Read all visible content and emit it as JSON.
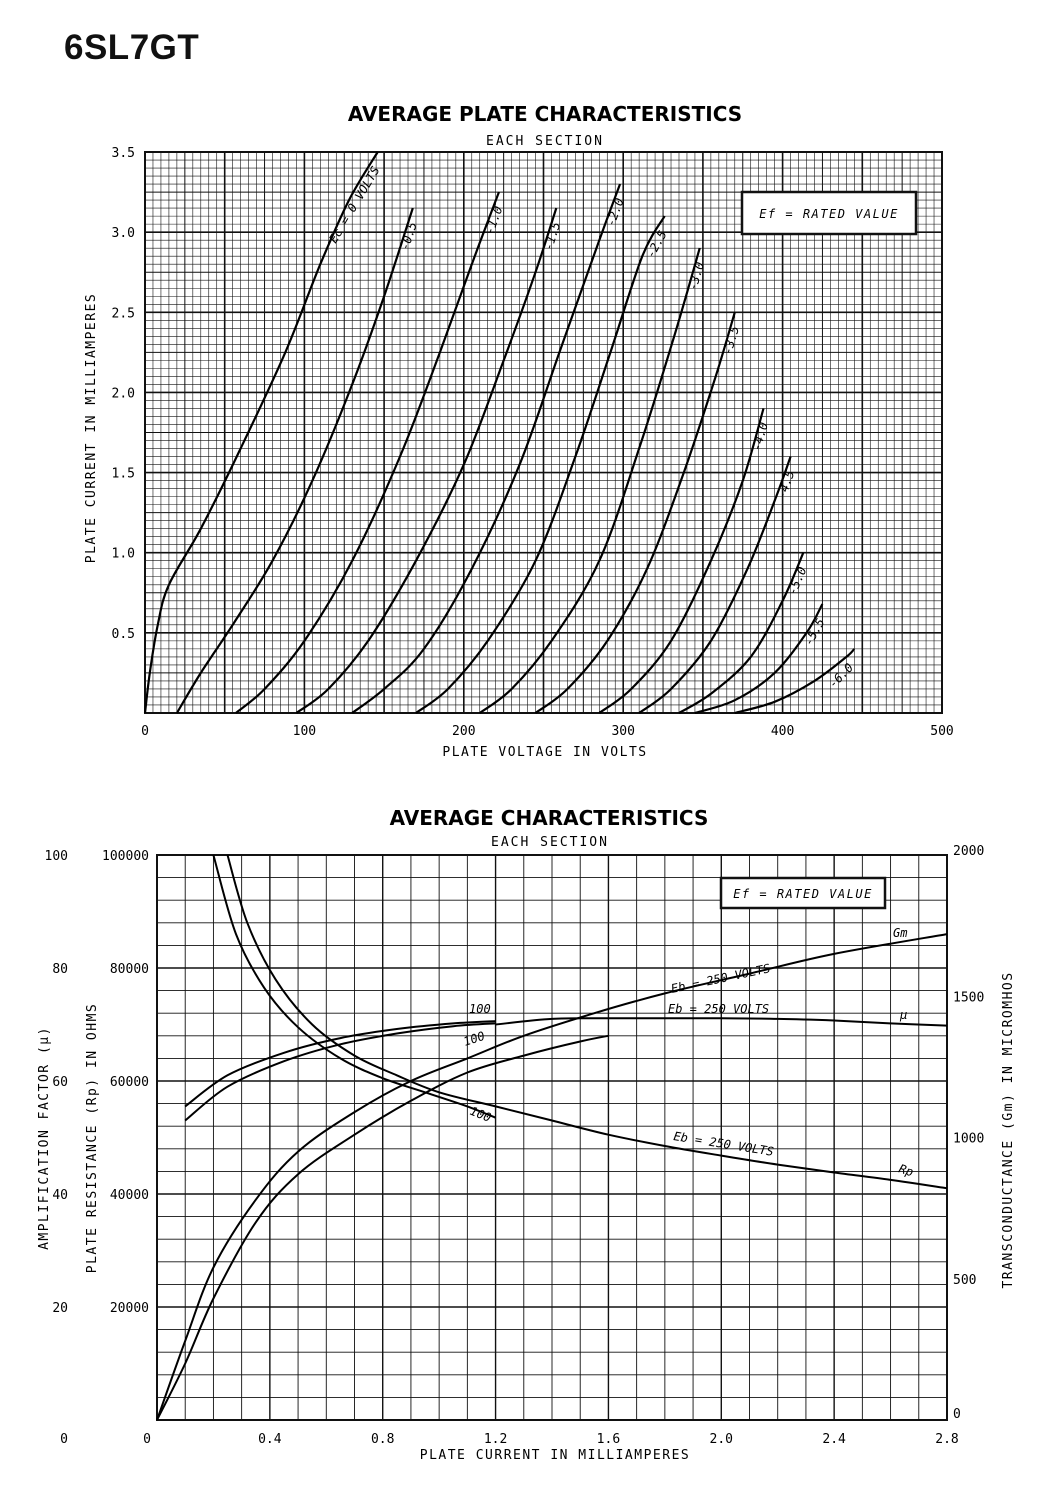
{
  "page": {
    "title": "6SL7GT"
  },
  "chart_data": [
    {
      "type": "line",
      "title": "AVERAGE PLATE CHARACTERISTICS",
      "subtitle": "EACH SECTION",
      "xlabel": "PLATE VOLTAGE IN VOLTS",
      "ylabel": "PLATE CURRENT IN MILLIAMPERES",
      "xlim": [
        0,
        500
      ],
      "ylim": [
        0,
        3.5
      ],
      "xticks": [
        "0",
        "100",
        "200",
        "300",
        "400",
        "500"
      ],
      "yticks": [
        "0.5",
        "1.0",
        "1.5",
        "2.0",
        "2.5",
        "3.0",
        "3.5"
      ],
      "grid": true,
      "note": "Ef = RATED VALUE",
      "series": [
        {
          "name": "Ec = 0 VOLTS",
          "points": [
            [
              0,
              0
            ],
            [
              3,
              0.25
            ],
            [
              8,
              0.55
            ],
            [
              15,
              0.8
            ],
            [
              35,
              1.15
            ],
            [
              60,
              1.65
            ],
            [
              88,
              2.25
            ],
            [
              110,
              2.8
            ],
            [
              128,
              3.2
            ],
            [
              146,
              3.5
            ]
          ]
        },
        {
          "name": "-0.5",
          "points": [
            [
              20,
              0
            ],
            [
              35,
              0.25
            ],
            [
              55,
              0.55
            ],
            [
              80,
              0.95
            ],
            [
              105,
              1.45
            ],
            [
              130,
              2.05
            ],
            [
              150,
              2.6
            ],
            [
              168,
              3.15
            ]
          ]
        },
        {
          "name": "-1.0",
          "points": [
            [
              57,
              0
            ],
            [
              75,
              0.15
            ],
            [
              100,
              0.45
            ],
            [
              130,
              0.95
            ],
            [
              160,
              1.6
            ],
            [
              185,
              2.25
            ],
            [
              205,
              2.8
            ],
            [
              222,
              3.25
            ]
          ]
        },
        {
          "name": "-1.5",
          "points": [
            [
              95,
              0
            ],
            [
              115,
              0.15
            ],
            [
              140,
              0.45
            ],
            [
              170,
              0.95
            ],
            [
              200,
              1.55
            ],
            [
              225,
              2.2
            ],
            [
              245,
              2.75
            ],
            [
              258,
              3.15
            ]
          ]
        },
        {
          "name": "-2.0",
          "points": [
            [
              130,
              0
            ],
            [
              150,
              0.15
            ],
            [
              175,
              0.4
            ],
            [
              205,
              0.9
            ],
            [
              235,
              1.55
            ],
            [
              260,
              2.25
            ],
            [
              285,
              2.95
            ],
            [
              298,
              3.3
            ]
          ]
        },
        {
          "name": "-2.5",
          "points": [
            [
              170,
              0
            ],
            [
              190,
              0.15
            ],
            [
              215,
              0.45
            ],
            [
              245,
              0.95
            ],
            [
              270,
              1.6
            ],
            [
              292,
              2.25
            ],
            [
              312,
              2.85
            ],
            [
              326,
              3.1
            ]
          ]
        },
        {
          "name": "-3.0",
          "points": [
            [
              210,
              0
            ],
            [
              230,
              0.15
            ],
            [
              255,
              0.45
            ],
            [
              285,
              0.95
            ],
            [
              310,
              1.65
            ],
            [
              332,
              2.35
            ],
            [
              348,
              2.9
            ]
          ]
        },
        {
          "name": "-3.5",
          "points": [
            [
              245,
              0
            ],
            [
              265,
              0.15
            ],
            [
              290,
              0.45
            ],
            [
              315,
              0.9
            ],
            [
              338,
              1.5
            ],
            [
              358,
              2.1
            ],
            [
              370,
              2.5
            ]
          ]
        },
        {
          "name": "-4.0",
          "points": [
            [
              285,
              0
            ],
            [
              305,
              0.15
            ],
            [
              330,
              0.45
            ],
            [
              355,
              0.95
            ],
            [
              375,
              1.45
            ],
            [
              388,
              1.9
            ]
          ]
        },
        {
          "name": "-4.5",
          "points": [
            [
              310,
              0
            ],
            [
              330,
              0.15
            ],
            [
              355,
              0.45
            ],
            [
              378,
              0.9
            ],
            [
              396,
              1.35
            ],
            [
              405,
              1.6
            ]
          ]
        },
        {
          "name": "-5.0",
          "points": [
            [
              335,
              0
            ],
            [
              355,
              0.12
            ],
            [
              380,
              0.35
            ],
            [
              400,
              0.7
            ],
            [
              413,
              1.0
            ]
          ]
        },
        {
          "name": "-5.5",
          "points": [
            [
              345,
              0
            ],
            [
              370,
              0.08
            ],
            [
              395,
              0.25
            ],
            [
              415,
              0.5
            ],
            [
              425,
              0.68
            ]
          ]
        },
        {
          "name": "-6.0",
          "points": [
            [
              370,
              0
            ],
            [
              395,
              0.07
            ],
            [
              420,
              0.2
            ],
            [
              440,
              0.35
            ],
            [
              445,
              0.4
            ]
          ]
        }
      ]
    },
    {
      "type": "line",
      "title": "AVERAGE CHARACTERISTICS",
      "subtitle": "EACH SECTION",
      "xlabel": "PLATE CURRENT IN MILLIAMPERES",
      "xlim": [
        0,
        2.8
      ],
      "xticks": [
        "0",
        "0.4",
        "0.8",
        "1.2",
        "1.6",
        "2.0",
        "2.4",
        "2.8"
      ],
      "grid": true,
      "note": "Ef = RATED VALUE",
      "left_axis_mu": {
        "label": "AMPLIFICATION FACTOR (μ)",
        "ticks": [
          "0",
          "20",
          "40",
          "60",
          "80",
          "100"
        ],
        "range": [
          0,
          100
        ]
      },
      "left_axis_rp": {
        "label": "PLATE RESISTANCE (Rp) IN OHMS",
        "ticks": [
          "0",
          "20000",
          "40000",
          "60000",
          "80000",
          "100000"
        ],
        "range": [
          0,
          100000
        ]
      },
      "right_axis_gm": {
        "label": "TRANSCONDUCTANCE (Gm) IN MICROMHOS",
        "ticks": [
          "0",
          "500",
          "1000",
          "1500",
          "2000"
        ],
        "range": [
          0,
          2000
        ]
      },
      "series": [
        {
          "name": "Gm",
          "axis": "gm",
          "label": "Eb = 250 VOLTS",
          "points": [
            [
              0,
              0
            ],
            [
              0.1,
              280
            ],
            [
              0.2,
              540
            ],
            [
              0.35,
              780
            ],
            [
              0.5,
              950
            ],
            [
              0.7,
              1090
            ],
            [
              0.9,
              1200
            ],
            [
              1.1,
              1280
            ],
            [
              1.3,
              1360
            ],
            [
              1.55,
              1440
            ],
            [
              1.8,
              1510
            ],
            [
              2.1,
              1580
            ],
            [
              2.4,
              1650
            ],
            [
              2.8,
              1720
            ]
          ]
        },
        {
          "name": "Gm",
          "axis": "gm",
          "label": "100",
          "points": [
            [
              0,
              0
            ],
            [
              0.1,
              200
            ],
            [
              0.2,
              430
            ],
            [
              0.35,
              700
            ],
            [
              0.5,
              870
            ],
            [
              0.7,
              1010
            ],
            [
              0.9,
              1130
            ],
            [
              1.1,
              1230
            ],
            [
              1.3,
              1290
            ],
            [
              1.5,
              1340
            ],
            [
              1.6,
              1360
            ]
          ]
        },
        {
          "name": "μ",
          "axis": "mu",
          "label": "Eb = 250 VOLTS",
          "points": [
            [
              1.2,
              70
            ],
            [
              1.4,
              71
            ],
            [
              1.6,
              71.1
            ],
            [
              1.8,
              71.1
            ],
            [
              2.0,
              71.1
            ],
            [
              2.2,
              71
            ],
            [
              2.4,
              70.7
            ],
            [
              2.6,
              70.2
            ],
            [
              2.8,
              69.8
            ]
          ]
        },
        {
          "name": "μ",
          "axis": "mu",
          "label": "100",
          "points": [
            [
              0.1,
              55.5
            ],
            [
              0.25,
              61
            ],
            [
              0.45,
              65
            ],
            [
              0.65,
              67.6
            ],
            [
              0.85,
              69.2
            ],
            [
              1.05,
              70.2
            ],
            [
              1.2,
              70.6
            ]
          ]
        },
        {
          "name": "μ",
          "axis": "mu",
          "label": "100",
          "points": [
            [
              0.1,
              53
            ],
            [
              0.25,
              59
            ],
            [
              0.45,
              63.5
            ],
            [
              0.65,
              66.5
            ],
            [
              0.85,
              68.4
            ],
            [
              1.05,
              69.7
            ],
            [
              1.2,
              70.2
            ]
          ]
        },
        {
          "name": "Rp",
          "axis": "rp",
          "label": "Eb = 250 VOLTS",
          "points": [
            [
              0.25,
              100000
            ],
            [
              0.32,
              88000
            ],
            [
              0.42,
              78000
            ],
            [
              0.55,
              70000
            ],
            [
              0.7,
              64500
            ],
            [
              0.85,
              61000
            ],
            [
              1.0,
              58000
            ],
            [
              1.2,
              55500
            ],
            [
              1.4,
              53000
            ],
            [
              1.6,
              50500
            ],
            [
              1.8,
              48500
            ],
            [
              2.0,
              46800
            ],
            [
              2.2,
              45200
            ],
            [
              2.4,
              43800
            ],
            [
              2.6,
              42500
            ],
            [
              2.8,
              41000
            ]
          ]
        },
        {
          "name": "Rp",
          "axis": "rp",
          "label": "100",
          "points": [
            [
              0.2,
              100000
            ],
            [
              0.28,
              86000
            ],
            [
              0.38,
              76500
            ],
            [
              0.5,
              69500
            ],
            [
              0.65,
              64000
            ],
            [
              0.8,
              60500
            ],
            [
              0.95,
              58000
            ],
            [
              1.1,
              55500
            ],
            [
              1.2,
              53500
            ]
          ]
        }
      ]
    }
  ],
  "labels": {
    "chart1_curves": [
      "Ec = 0 VOLTS",
      "-0.5",
      "-1.0",
      "-1.5",
      "-2.0",
      "-2.5",
      "-3.0",
      "-3.5",
      "-4.0",
      "-4.5",
      "-5.0",
      "-5.5",
      "-6.0"
    ],
    "chart2": {
      "gm": "Gm",
      "mu": "μ",
      "rp": "Rp",
      "eb250_gm": "Eb = 250 VOLTS",
      "eb250_mu": "Eb = 250 VOLTS",
      "eb250_rp": "Eb = 250 VOLTS",
      "mu100_top": "100",
      "mu100_bot": "100",
      "rp100": "100"
    }
  }
}
